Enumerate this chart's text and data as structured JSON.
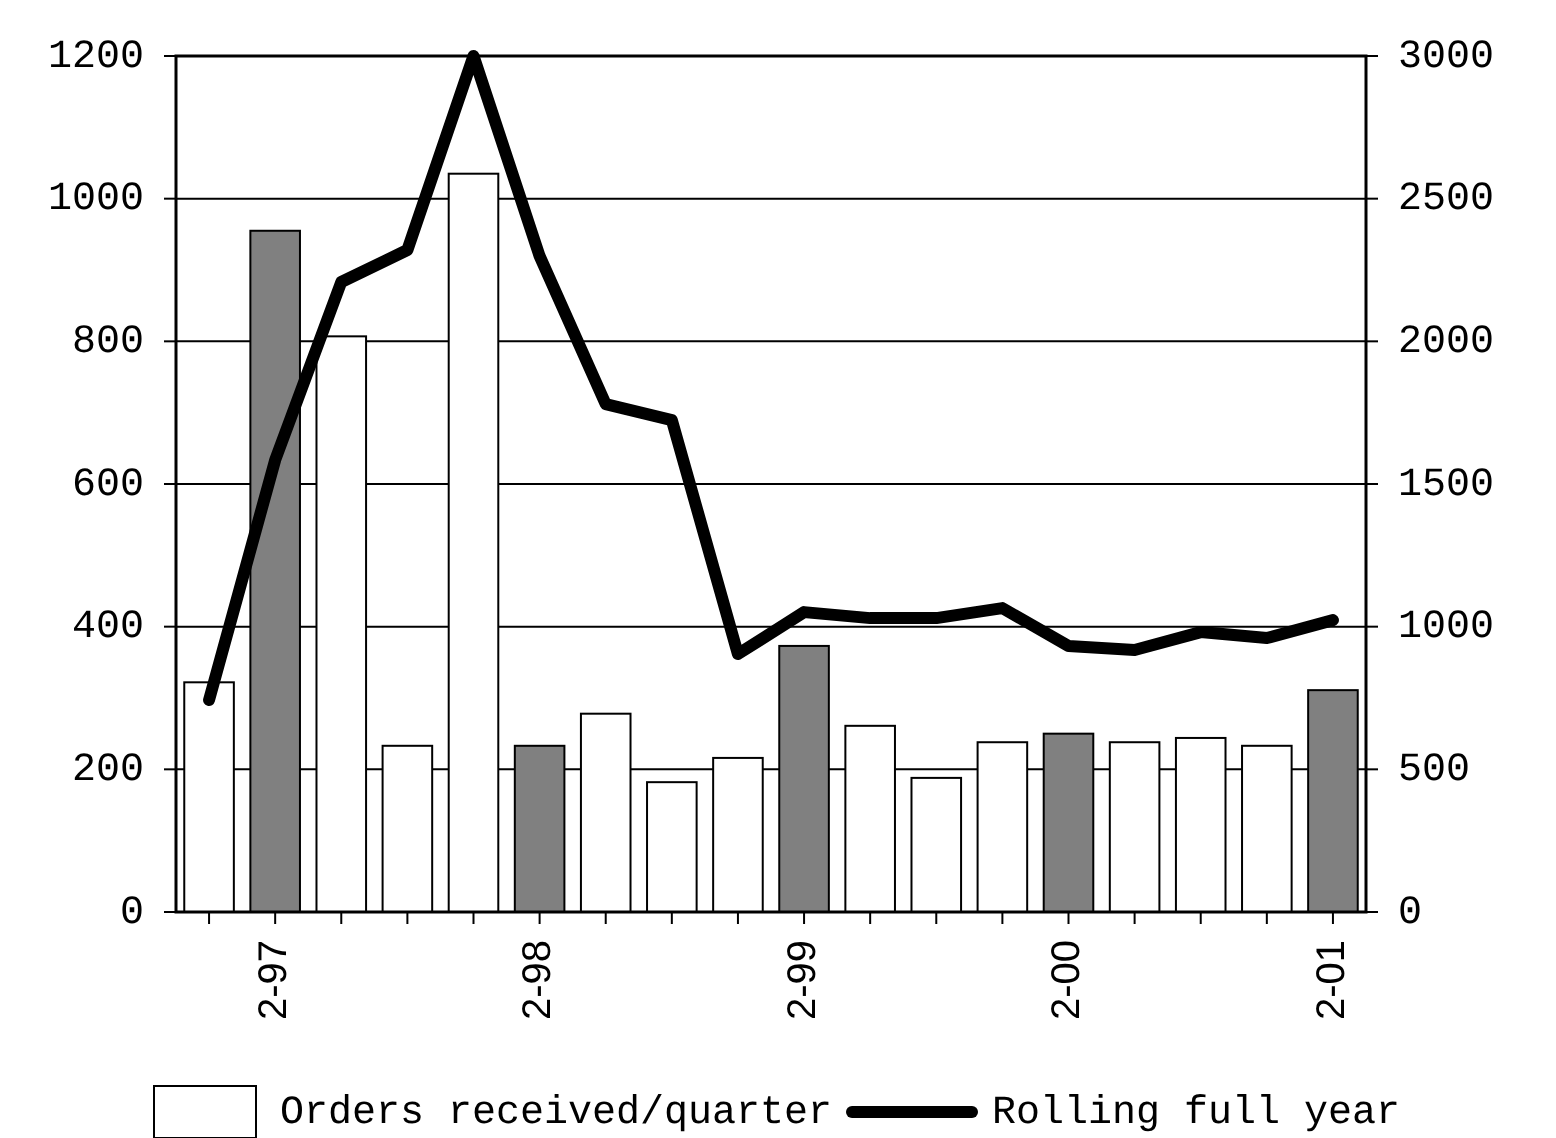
{
  "chart_data": {
    "type": "bar",
    "categories": [
      null,
      "2-97",
      null,
      null,
      null,
      "2-98",
      null,
      null,
      null,
      "2-99",
      null,
      null,
      null,
      "2-00",
      null,
      null,
      null,
      "2-01"
    ],
    "series": [
      {
        "name": "Orders received/quarter",
        "color": "#ffffff",
        "colors": [
          "#ffffff",
          "#808080",
          "#ffffff",
          "#ffffff",
          "#ffffff",
          "#808080",
          "#ffffff",
          "#ffffff",
          "#ffffff",
          "#808080",
          "#ffffff",
          "#ffffff",
          "#ffffff",
          "#808080",
          "#ffffff",
          "#ffffff",
          "#ffffff",
          "#808080"
        ],
        "values": [
          322,
          955,
          807,
          233,
          1035,
          233,
          278,
          182,
          216,
          373,
          261,
          188,
          238,
          250,
          238,
          244,
          233,
          311
        ]
      },
      {
        "name": "Rolling full year",
        "type": "line",
        "axis": "y2",
        "color": "#000000",
        "values": [
          743,
          1584,
          2208,
          2320,
          3000,
          2299,
          1780,
          1724,
          904,
          1051,
          1030,
          1030,
          1065,
          932,
          918,
          981,
          960,
          1023
        ]
      }
    ],
    "ylim": [
      0,
      1200
    ],
    "yticks": [
      0,
      200,
      400,
      600,
      800,
      1000,
      1200
    ],
    "y2lim": [
      0,
      3000
    ],
    "y2ticks": [
      0,
      500,
      1000,
      1500,
      2000,
      2500,
      3000
    ],
    "grid": "y",
    "legend": "bottom",
    "marker": "none",
    "line_style": "solid"
  }
}
